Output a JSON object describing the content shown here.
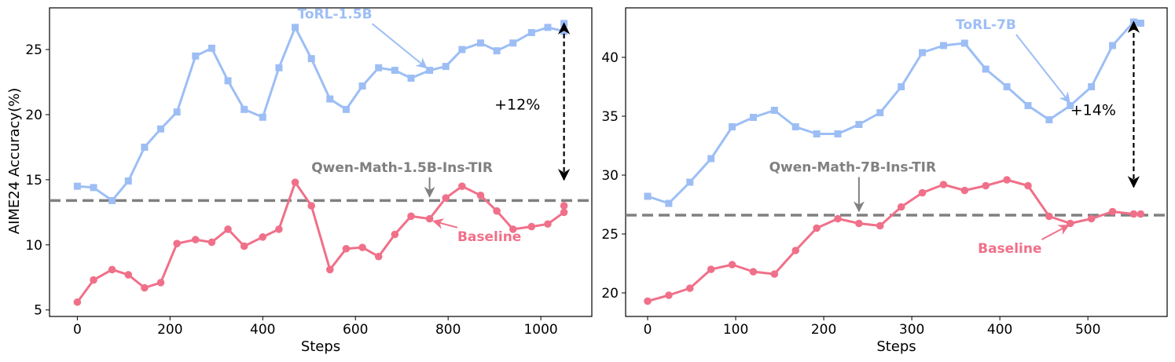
{
  "chart_data": [
    {
      "type": "line",
      "xlabel": "Steps",
      "ylabel": "AIME24 Accuracy(%)",
      "xlim": [
        -60,
        1110
      ],
      "ylim": [
        4.5,
        28.2
      ],
      "xticks": [
        0,
        200,
        400,
        600,
        800,
        1000
      ],
      "yticks": [
        5,
        10,
        15,
        20,
        25
      ],
      "grid": false,
      "series": [
        {
          "name": "ToRL-1.5B",
          "color": "#9dbef5",
          "marker": "square",
          "x": [
            0,
            35,
            75,
            110,
            145,
            180,
            215,
            255,
            290,
            325,
            360,
            400,
            435,
            470,
            505,
            545,
            580,
            615,
            650,
            685,
            720,
            760,
            795,
            830,
            870,
            905,
            940,
            980,
            1015,
            1050
          ],
          "y": [
            14.5,
            14.4,
            13.4,
            14.9,
            17.5,
            18.9,
            20.2,
            24.5,
            25.1,
            22.6,
            20.4,
            19.8,
            23.6,
            26.7,
            24.3,
            21.2,
            20.4,
            22.2,
            23.6,
            23.4,
            22.8,
            23.4,
            23.7,
            25.0,
            25.5,
            24.9,
            25.5,
            26.3,
            26.7,
            26.4
          ]
        },
        {
          "name": "Baseline",
          "color": "#f07089",
          "marker": "circle",
          "x": [
            0,
            35,
            75,
            110,
            145,
            180,
            215,
            255,
            290,
            325,
            360,
            400,
            435,
            470,
            505,
            545,
            580,
            615,
            650,
            685,
            720,
            760,
            795,
            830,
            870,
            905,
            940,
            980,
            1015,
            1050
          ],
          "y": [
            5.6,
            7.3,
            8.1,
            7.7,
            6.7,
            7.1,
            10.1,
            10.4,
            10.2,
            11.2,
            9.9,
            10.6,
            11.2,
            14.8,
            13.0,
            8.1,
            9.7,
            9.8,
            9.1,
            10.8,
            12.2,
            12.0,
            13.6,
            14.5,
            13.8,
            12.6,
            11.2,
            11.4,
            11.6,
            12.5
          ]
        }
      ],
      "extra_point": {
        "series": "ToRL-1.5B",
        "x": 1050,
        "y": 27.0
      },
      "extra_point_baseline": {
        "x": 1050,
        "y": 13.0
      },
      "reference_line": {
        "label": "Qwen-Math-1.5B-Ins-TIR",
        "y": 13.4,
        "color": "#808080",
        "style": "dashed"
      },
      "annotations": [
        {
          "text": "ToRL-1.5B",
          "color": "#9dbef5",
          "text_x": 475,
          "text_y": 27.4,
          "arrow_to_x": 760,
          "arrow_to_y": 23.4
        },
        {
          "text": "Qwen-Math-1.5B-Ins-TIR",
          "color": "#808080",
          "text_x": 505,
          "text_y": 15.6,
          "arrow_to_x": 760,
          "arrow_to_y": 13.4
        },
        {
          "text": "Baseline",
          "color": "#f07089",
          "text_x": 820,
          "text_y": 10.3,
          "arrow_to_x": 760,
          "arrow_to_y": 11.9
        }
      ],
      "delta": {
        "text": "+12%",
        "x": 1050,
        "y_from": 15.0,
        "y_to": 27.0,
        "text_x": 900,
        "text_y": 20.4
      }
    },
    {
      "type": "line",
      "xlabel": "Steps",
      "ylabel": "",
      "xlim": [
        -25,
        590
      ],
      "ylim": [
        18.0,
        44.2
      ],
      "xticks": [
        0,
        100,
        200,
        300,
        400,
        500
      ],
      "yticks": [
        20,
        25,
        30,
        35,
        40
      ],
      "grid": false,
      "series": [
        {
          "name": "ToRL-7B",
          "color": "#9dbef5",
          "marker": "square",
          "x": [
            0,
            24,
            48,
            72,
            96,
            120,
            144,
            168,
            192,
            216,
            240,
            264,
            288,
            312,
            336,
            360,
            384,
            408,
            432,
            456,
            480,
            504,
            528,
            552,
            560
          ],
          "y": [
            28.2,
            27.6,
            29.4,
            31.4,
            34.1,
            34.9,
            35.5,
            34.1,
            33.5,
            33.5,
            34.3,
            35.3,
            37.5,
            40.4,
            41.0,
            41.2,
            39.0,
            37.5,
            35.9,
            34.7,
            35.9,
            37.5,
            41.0,
            43.0,
            42.9
          ]
        },
        {
          "name": "Baseline",
          "color": "#f07089",
          "marker": "circle",
          "x": [
            0,
            24,
            48,
            72,
            96,
            120,
            144,
            168,
            192,
            216,
            240,
            264,
            288,
            312,
            336,
            360,
            384,
            408,
            432,
            456,
            480,
            504,
            528,
            552,
            560
          ],
          "y": [
            19.3,
            19.8,
            20.4,
            22.0,
            22.4,
            21.8,
            21.6,
            23.6,
            25.5,
            26.3,
            25.9,
            25.7,
            27.3,
            28.5,
            29.2,
            28.7,
            29.1,
            29.6,
            29.1,
            26.5,
            25.9,
            26.3,
            26.9,
            26.7,
            26.7
          ]
        }
      ],
      "reference_line": {
        "label": "Qwen-Math-7B-Ins-TIR",
        "y": 26.6,
        "color": "#808080",
        "style": "dashed"
      },
      "annotations": [
        {
          "text": "ToRL-7B",
          "color": "#9dbef5",
          "text_x": 350,
          "text_y": 42.4,
          "arrow_to_x": 482,
          "arrow_to_y": 35.9
        },
        {
          "text": "Qwen-Math-7B-Ins-TIR",
          "color": "#808080",
          "text_x": 138,
          "text_y": 30.3,
          "arrow_to_x": 240,
          "arrow_to_y": 26.6
        },
        {
          "text": "Baseline",
          "color": "#f07089",
          "text_x": 375,
          "text_y": 23.4,
          "arrow_to_x": 482,
          "arrow_to_y": 25.9
        }
      ],
      "delta": {
        "text": "+14%",
        "x": 552,
        "y_from": 29.0,
        "y_to": 43.0,
        "text_x": 480,
        "text_y": 35.1
      }
    }
  ]
}
